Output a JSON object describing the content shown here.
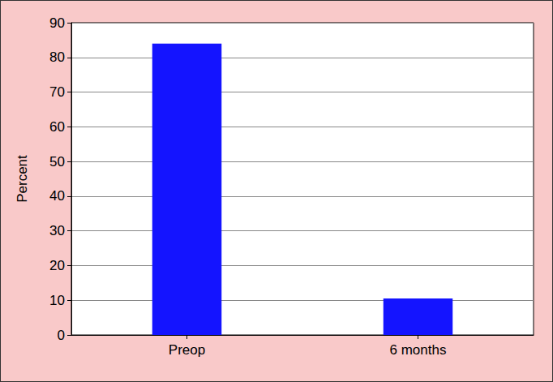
{
  "chart_data": {
    "type": "bar",
    "y_label": "Percent",
    "categories": [
      "Preop",
      "6 months"
    ],
    "values": [
      84,
      10.5
    ],
    "color": "#1414ff",
    "ylim": [
      0,
      90
    ],
    "yticks": [
      0,
      10,
      20,
      30,
      40,
      50,
      60,
      70,
      80,
      90
    ],
    "grid": true
  }
}
